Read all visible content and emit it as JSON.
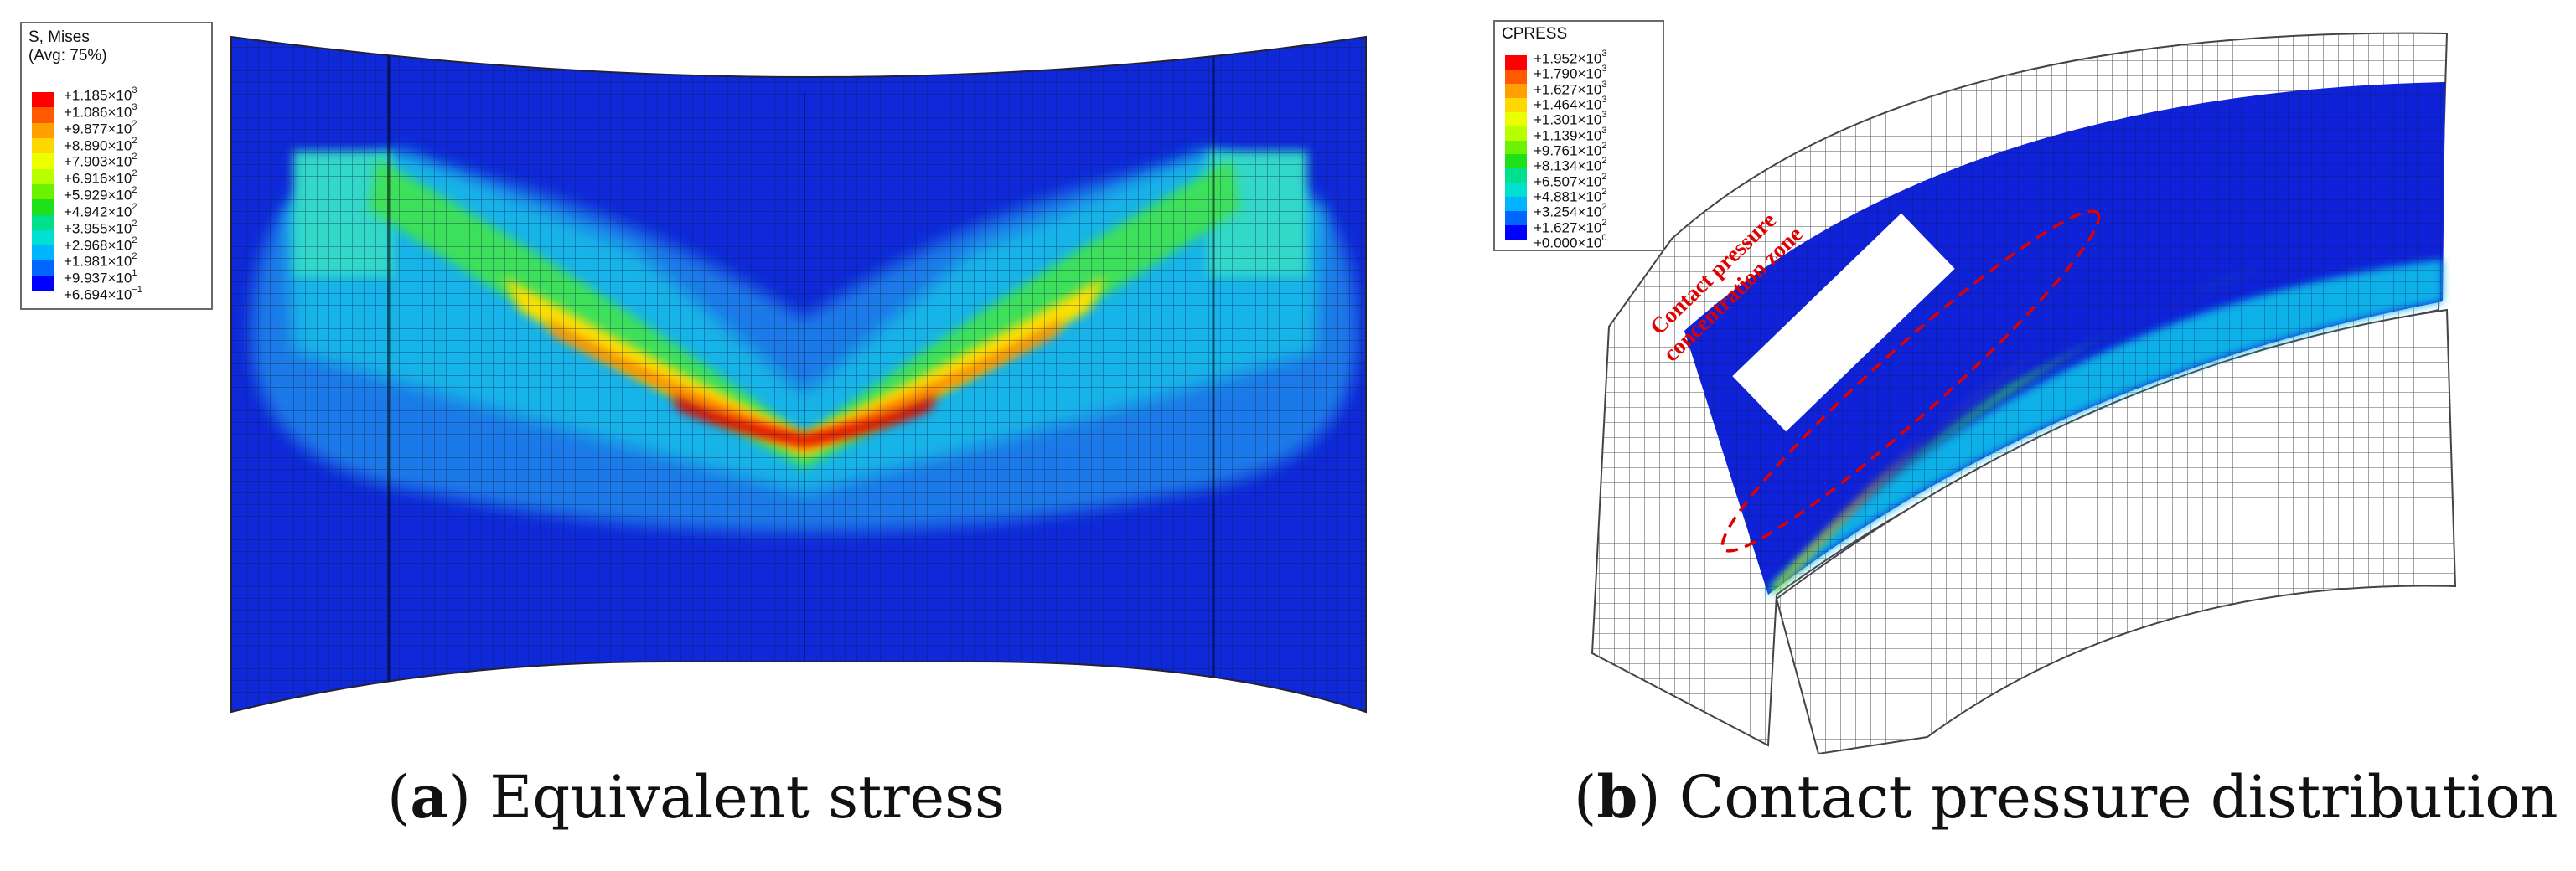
{
  "panel_a": {
    "legend": {
      "title": "S, Mises\n(Avg: 75%)",
      "colors": [
        "#ff0000",
        "#ff5a00",
        "#ffa000",
        "#ffd800",
        "#ecff00",
        "#b8ff00",
        "#6cf200",
        "#20e01a",
        "#00e08c",
        "#00e0d0",
        "#00b4ff",
        "#0066ff",
        "#0000ff"
      ],
      "values": [
        {
          "m": "+1.185",
          "e": "3"
        },
        {
          "m": "+1.086",
          "e": "3"
        },
        {
          "m": "+9.877",
          "e": "2"
        },
        {
          "m": "+8.890",
          "e": "2"
        },
        {
          "m": "+7.903",
          "e": "2"
        },
        {
          "m": "+6.916",
          "e": "2"
        },
        {
          "m": "+5.929",
          "e": "2"
        },
        {
          "m": "+4.942",
          "e": "2"
        },
        {
          "m": "+3.955",
          "e": "2"
        },
        {
          "m": "+2.968",
          "e": "2"
        },
        {
          "m": "+1.981",
          "e": "2"
        },
        {
          "m": "+9.937",
          "e": "1"
        },
        {
          "m": "+6.694",
          "e": "−1"
        }
      ]
    },
    "caption": {
      "letter": "a",
      "text": " Equivalent stress"
    }
  },
  "panel_b": {
    "legend": {
      "title": "CPRESS",
      "colors": [
        "#ff0000",
        "#ff5a00",
        "#ffa000",
        "#ffd800",
        "#ecff00",
        "#b8ff00",
        "#6cf200",
        "#20e01a",
        "#00e08c",
        "#00e0d0",
        "#00b4ff",
        "#0066ff",
        "#0000ff"
      ],
      "values": [
        {
          "m": "+1.952",
          "e": "3"
        },
        {
          "m": "+1.790",
          "e": "3"
        },
        {
          "m": "+1.627",
          "e": "3"
        },
        {
          "m": "+1.464",
          "e": "3"
        },
        {
          "m": "+1.301",
          "e": "3"
        },
        {
          "m": "+1.139",
          "e": "3"
        },
        {
          "m": "+9.761",
          "e": "2"
        },
        {
          "m": "+8.134",
          "e": "2"
        },
        {
          "m": "+6.507",
          "e": "2"
        },
        {
          "m": "+4.881",
          "e": "2"
        },
        {
          "m": "+3.254",
          "e": "2"
        },
        {
          "m": "+1.627",
          "e": "2"
        },
        {
          "m": "+0.000",
          "e": "0"
        }
      ]
    },
    "annotation": "Contact pressure\nconcentration zone",
    "annotation_color": "#e00000",
    "caption": {
      "letter": "b",
      "text": " Contact pressure distribution"
    }
  }
}
